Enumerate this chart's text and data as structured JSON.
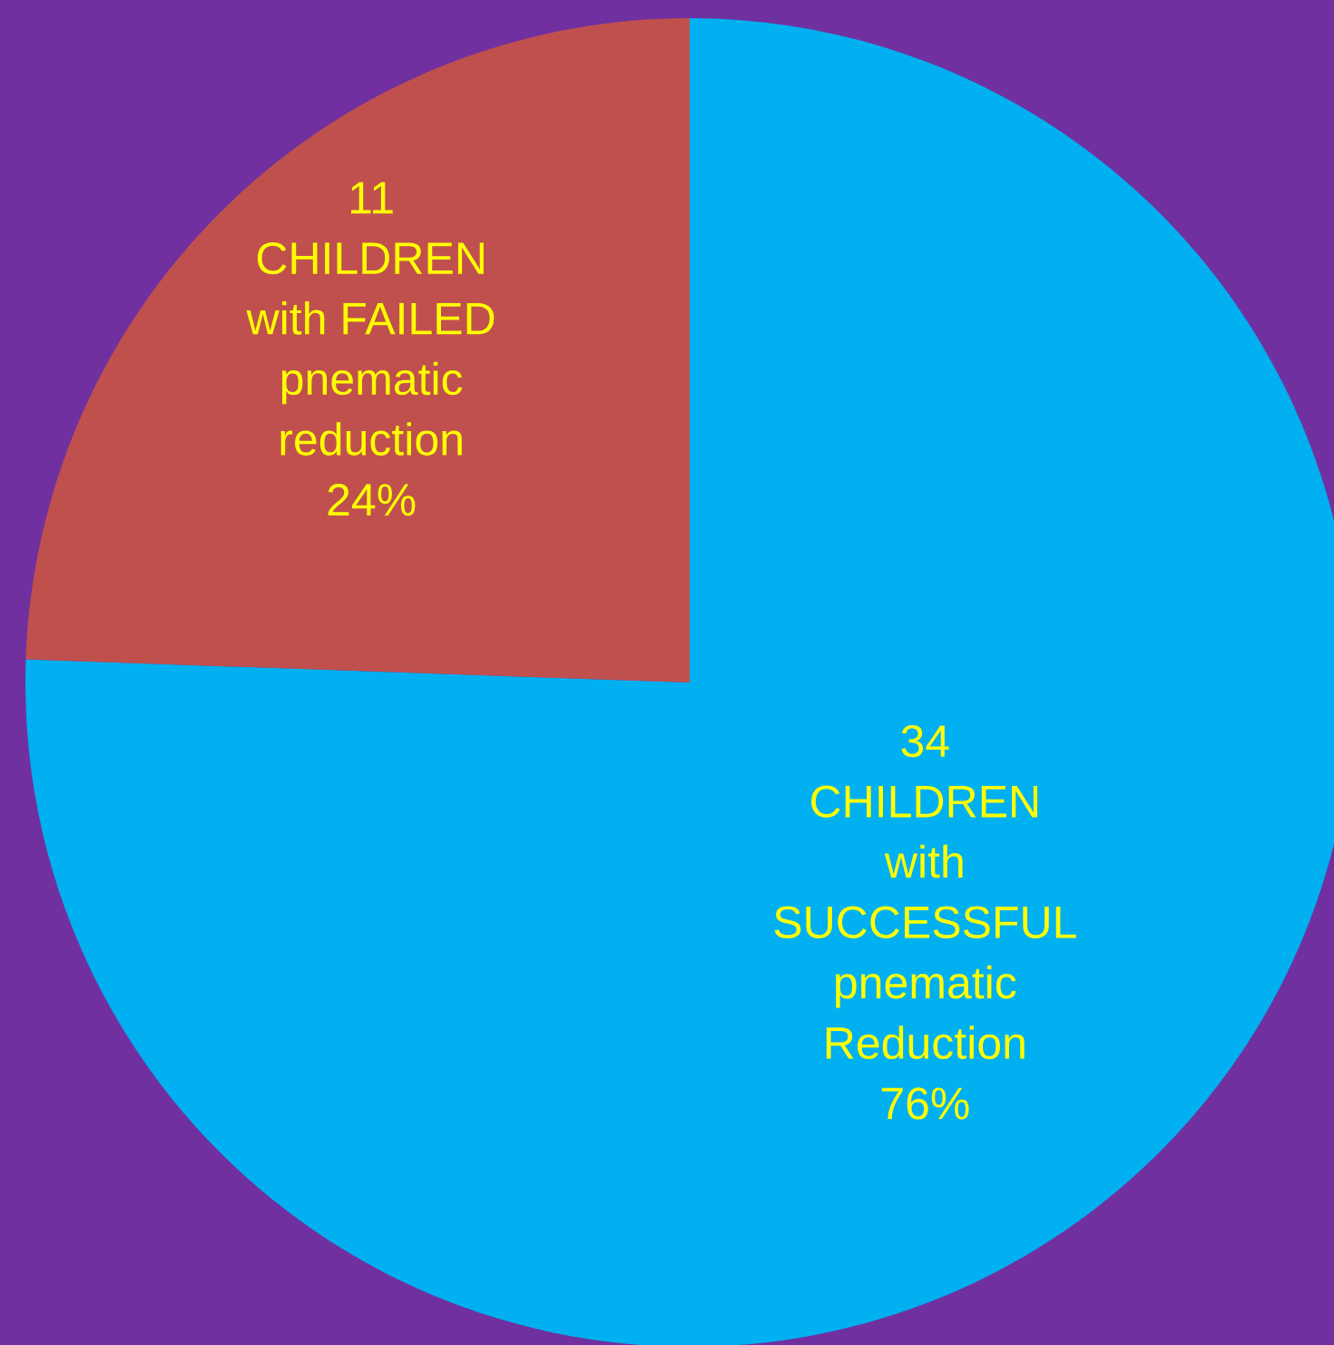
{
  "chart_data": {
    "type": "pie",
    "categories": [
      "34\nCHILDREN\nwith\nSUCCESSFUL\npnematic\nReduction\n76%",
      "11\nCHILDREN\nwith FAILED\npnematic\nreduction\n24%"
    ],
    "values": [
      34,
      11
    ],
    "colors": [
      "#00b0f0",
      "#c0504d"
    ],
    "legend": false
  }
}
